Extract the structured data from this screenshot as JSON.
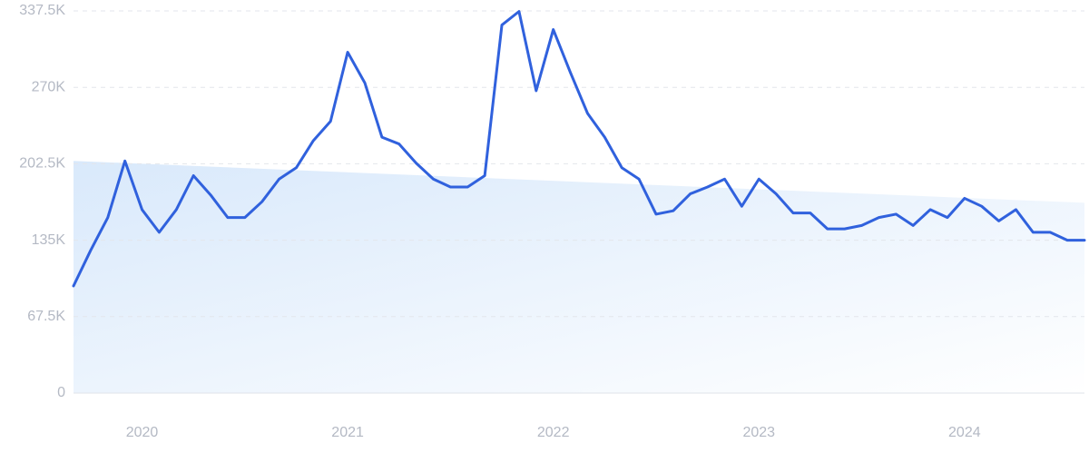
{
  "chart_data": {
    "type": "line",
    "categories": [
      null,
      null,
      null,
      null,
      "2020",
      null,
      null,
      null,
      null,
      null,
      null,
      null,
      null,
      null,
      null,
      null,
      "2021",
      null,
      null,
      null,
      null,
      null,
      null,
      null,
      null,
      null,
      null,
      null,
      "2022",
      null,
      null,
      null,
      null,
      null,
      null,
      null,
      null,
      null,
      null,
      null,
      "2023",
      null,
      null,
      null,
      null,
      null,
      null,
      null,
      null,
      null,
      null,
      null,
      "2024",
      null,
      null,
      null,
      null,
      null,
      null,
      null
    ],
    "series": [
      {
        "color": "#3061dd",
        "values": [
          94600,
          126000,
          155000,
          205000,
          162000,
          142000,
          162000,
          192000,
          175000,
          155000,
          155000,
          169000,
          189000,
          199000,
          223000,
          240000,
          301000,
          274000,
          226000,
          220000,
          203000,
          189000,
          182000,
          182000,
          192000,
          325000,
          337000,
          267000,
          321000,
          283000,
          247000,
          226000,
          199000,
          189000,
          158000,
          161000,
          176000,
          182000,
          189000,
          165000,
          189000,
          176000,
          159000,
          159000,
          145000,
          145000,
          148000,
          155000,
          158000,
          148000,
          162000,
          155000,
          172000,
          165000,
          152000,
          162000,
          142000,
          142000,
          135000,
          135000
        ]
      }
    ],
    "trend": {
      "color": "#d8e8fb",
      "values": [
        205000,
        168000
      ]
    },
    "ylim": [
      0,
      337500
    ],
    "yticks": [
      0,
      {
        "value": 67500,
        "label": "67.5K"
      },
      {
        "value": 135000,
        "label": "135K"
      },
      {
        "value": 202500,
        "label": "202.5K"
      },
      {
        "value": 270000,
        "label": "270K"
      },
      {
        "value": 337500,
        "label": "337.5K"
      }
    ],
    "grid": true
  }
}
